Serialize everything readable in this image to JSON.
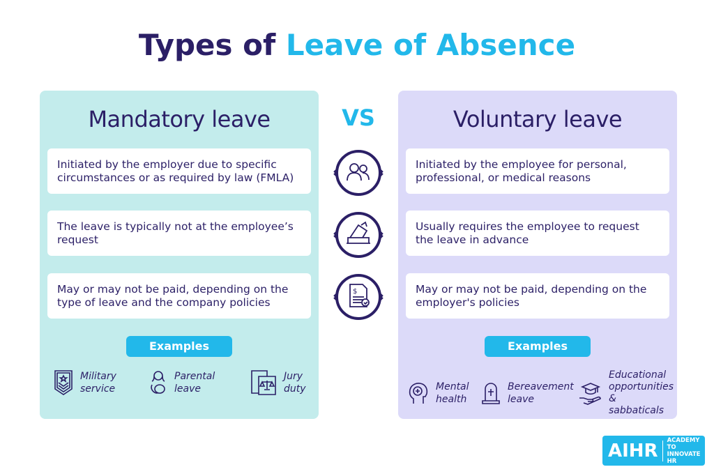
{
  "title": {
    "part1": "Types of ",
    "part2": "Leave of Absence"
  },
  "vs": "VS",
  "mandatory": {
    "heading": "Mandatory leave",
    "points": [
      "Initiated by the employer due to specific circumstances or as required by law (FMLA)",
      "The leave is typically not at the employee’s request",
      "May or may not be paid, depending on the type of leave and the company policies"
    ],
    "examples_label": "Examples",
    "examples": [
      {
        "icon": "military-badge-icon",
        "label": "Military service"
      },
      {
        "icon": "mother-baby-icon",
        "label": "Parental leave"
      },
      {
        "icon": "jury-scales-icon",
        "label": "Jury duty"
      }
    ]
  },
  "voluntary": {
    "heading": "Voluntary leave",
    "points": [
      "Initiated by the employee for personal, professional, or medical reasons",
      "Usually requires the employee to request the leave in advance",
      "May or may not be paid, depending on the employer's policies"
    ],
    "examples_label": "Examples",
    "examples": [
      {
        "icon": "mental-health-icon",
        "label": "Mental health"
      },
      {
        "icon": "tombstone-icon",
        "label": "Bereavement leave"
      },
      {
        "icon": "graduation-hand-icon",
        "label": "Educational opportunities & sabbaticals"
      }
    ]
  },
  "logo": {
    "name": "AIHR",
    "tagline": "ACADEMY TO INNOVATE HR"
  },
  "colors": {
    "navy": "#2b1f66",
    "accent": "#22b8ea",
    "mint": "#c3ecec",
    "lavender": "#dcdaf9"
  }
}
